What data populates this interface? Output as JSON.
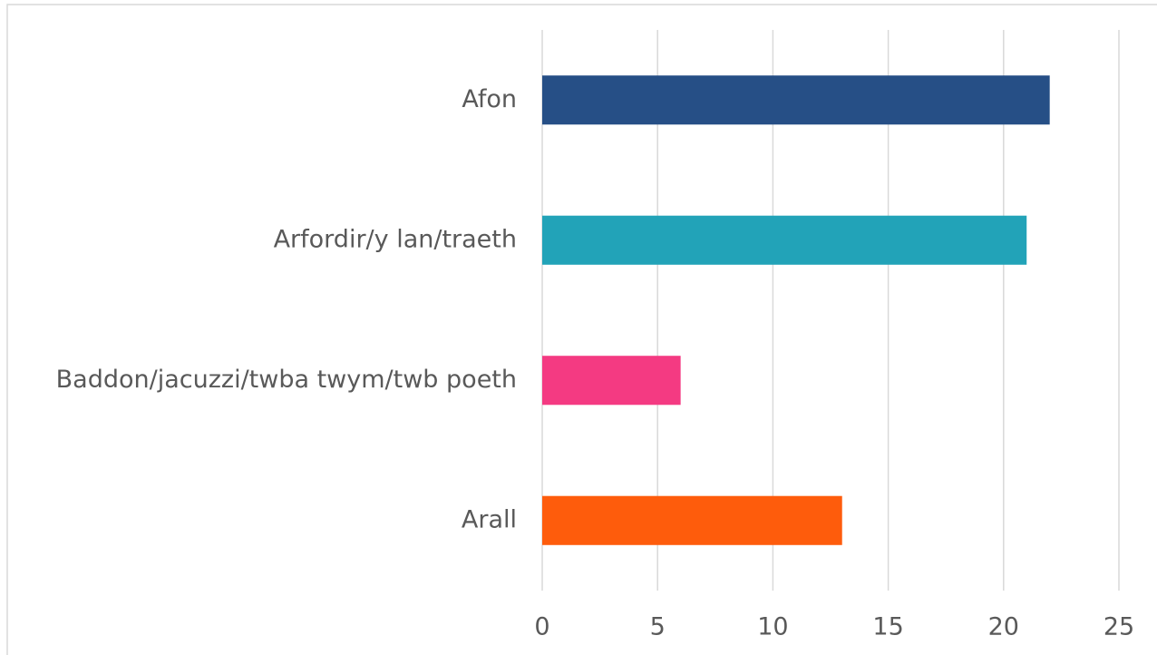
{
  "chart_data": {
    "type": "bar",
    "orientation": "horizontal",
    "categories": [
      "Afon",
      "Arfordir/y lan/traeth",
      "Baddon/jacuzzi/twba twym/twb poeth",
      "Arall"
    ],
    "values": [
      22,
      21,
      6,
      13
    ],
    "colors": [
      "#264f86",
      "#22a3b8",
      "#f43a82",
      "#fe5c0c"
    ],
    "xlim": [
      0,
      25
    ],
    "xticks": [
      0,
      5,
      10,
      15,
      20,
      25
    ],
    "grid": true
  }
}
